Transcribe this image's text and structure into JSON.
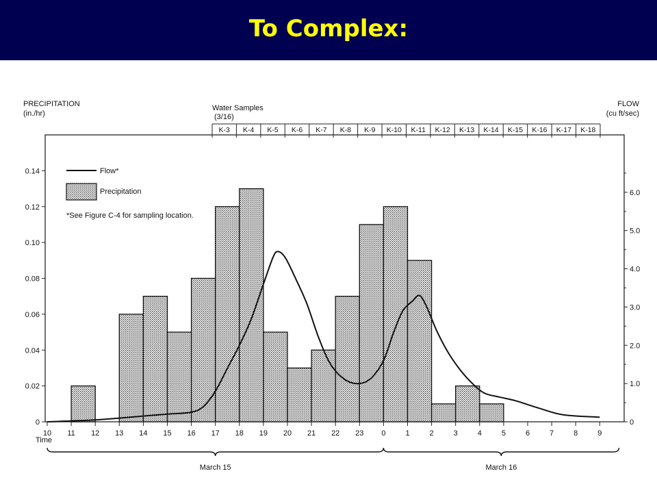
{
  "slide": {
    "title": "To Complex:",
    "bar_color": "#000050",
    "title_color": "#ffff00"
  },
  "chart_data": {
    "type": "bar",
    "left_axis_title": "PRECIPITATION",
    "left_axis_unit": "(in./hr)",
    "right_axis_title": "FLOW",
    "right_axis_unit": "(cu ft/sec)",
    "x_title": "Time",
    "x_ticks": [
      "10",
      "11",
      "12",
      "13",
      "14",
      "15",
      "16",
      "17",
      "18",
      "19",
      "20",
      "21",
      "22",
      "23",
      "0",
      "1",
      "2",
      "3",
      "4",
      "5",
      "6",
      "7",
      "8",
      "9"
    ],
    "y_left_ticks": [
      "0",
      "0.02",
      "0.04",
      "0.06",
      "0.08",
      "0.10",
      "0.12",
      "0.14"
    ],
    "y_left_range": [
      0,
      0.16
    ],
    "y_right_ticks": [
      "0",
      "1.0",
      "2.0",
      "3.0",
      "4.0",
      "5.0",
      "6.0"
    ],
    "y_right_range": [
      0,
      7.5
    ],
    "precipitation": [
      {
        "start": 11,
        "end": 12,
        "value": 0.02
      },
      {
        "start": 13,
        "end": 14,
        "value": 0.06
      },
      {
        "start": 14,
        "end": 15,
        "value": 0.07
      },
      {
        "start": 15,
        "end": 16,
        "value": 0.05
      },
      {
        "start": 16,
        "end": 17,
        "value": 0.08
      },
      {
        "start": 17,
        "end": 18,
        "value": 0.12
      },
      {
        "start": 18,
        "end": 19,
        "value": 0.13
      },
      {
        "start": 19,
        "end": 20,
        "value": 0.05
      },
      {
        "start": 20,
        "end": 21,
        "value": 0.03
      },
      {
        "start": 21,
        "end": 22,
        "value": 0.04
      },
      {
        "start": 22,
        "end": 23,
        "value": 0.07
      },
      {
        "start": 23,
        "end": 24,
        "value": 0.11
      },
      {
        "start": 24,
        "end": 25,
        "value": 0.12
      },
      {
        "start": 25,
        "end": 26,
        "value": 0.09
      },
      {
        "start": 26,
        "end": 27,
        "value": 0.01
      },
      {
        "start": 27,
        "end": 28,
        "value": 0.02
      },
      {
        "start": 28,
        "end": 29,
        "value": 0.01
      }
    ],
    "flow": [
      {
        "x": 10,
        "y": 0
      },
      {
        "x": 12,
        "y": 0.05
      },
      {
        "x": 14,
        "y": 0.15
      },
      {
        "x": 15,
        "y": 0.2
      },
      {
        "x": 16,
        "y": 0.25
      },
      {
        "x": 16.5,
        "y": 0.4
      },
      {
        "x": 17,
        "y": 0.8
      },
      {
        "x": 17.5,
        "y": 1.4
      },
      {
        "x": 18,
        "y": 2.0
      },
      {
        "x": 18.5,
        "y": 2.7
      },
      {
        "x": 19,
        "y": 3.6
      },
      {
        "x": 19.4,
        "y": 4.3
      },
      {
        "x": 19.6,
        "y": 4.45
      },
      {
        "x": 19.9,
        "y": 4.3
      },
      {
        "x": 20.3,
        "y": 3.8
      },
      {
        "x": 20.8,
        "y": 3.1
      },
      {
        "x": 21.3,
        "y": 2.2
      },
      {
        "x": 21.8,
        "y": 1.5
      },
      {
        "x": 22.4,
        "y": 1.1
      },
      {
        "x": 23,
        "y": 1.0
      },
      {
        "x": 23.5,
        "y": 1.15
      },
      {
        "x": 24,
        "y": 1.6
      },
      {
        "x": 24.4,
        "y": 2.3
      },
      {
        "x": 24.8,
        "y": 2.9
      },
      {
        "x": 25.2,
        "y": 3.15
      },
      {
        "x": 25.5,
        "y": 3.3
      },
      {
        "x": 25.8,
        "y": 3.0
      },
      {
        "x": 26.2,
        "y": 2.4
      },
      {
        "x": 26.7,
        "y": 1.8
      },
      {
        "x": 27.2,
        "y": 1.35
      },
      {
        "x": 27.7,
        "y": 1.0
      },
      {
        "x": 28.2,
        "y": 0.75
      },
      {
        "x": 28.8,
        "y": 0.65
      },
      {
        "x": 29.5,
        "y": 0.55
      },
      {
        "x": 30.5,
        "y": 0.35
      },
      {
        "x": 31.5,
        "y": 0.18
      },
      {
        "x": 33,
        "y": 0.12
      }
    ],
    "legend": {
      "flow_label": "Flow*",
      "precip_label": "Precipitation",
      "note": "*See Figure C-4 for sampling location."
    },
    "water_samples": {
      "title": "Water Samples",
      "subtitle": "(3/16)",
      "labels": [
        "K-3",
        "K-4",
        "K-5",
        "K-6",
        "K-7",
        "K-8",
        "K-9",
        "K-10",
        "K-11",
        "K-12",
        "K-13",
        "K-14",
        "K-15",
        "K-16",
        "K-17",
        "K-18"
      ]
    },
    "dates": [
      {
        "label": "March 15",
        "from": 10,
        "to": 24
      },
      {
        "label": "March 16",
        "from": 24,
        "to": 33.8
      }
    ]
  }
}
